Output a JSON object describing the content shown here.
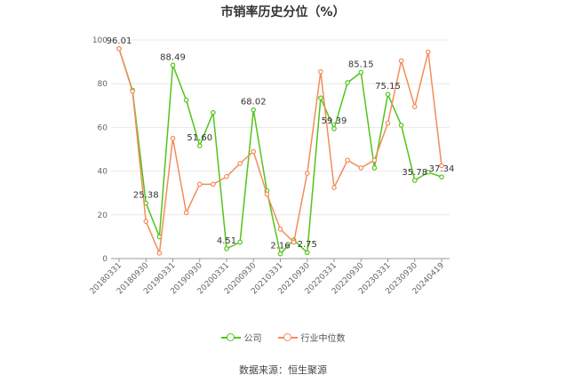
{
  "chart_data": {
    "type": "line",
    "title": "市销率历史分位（%）",
    "ylim": [
      0,
      100
    ],
    "yticks": [
      0,
      20,
      40,
      60,
      80,
      100
    ],
    "xtick_labels": [
      "20180331",
      "20180930",
      "20190331",
      "20190930",
      "20200331",
      "20200930",
      "20210331",
      "20210930",
      "20220331",
      "20220930",
      "20230331",
      "20230930",
      "20240419"
    ],
    "grid": true,
    "legend_position": "bottom",
    "series": [
      {
        "name": "公司",
        "color": "#52c41a",
        "values": [
          96.01,
          77.0,
          25.38,
          10.0,
          88.49,
          72.5,
          51.6,
          66.8,
          4.51,
          7.5,
          68.02,
          31.0,
          2.16,
          8.5,
          2.75,
          73.5,
          59.39,
          80.5,
          85.15,
          41.5,
          75.15,
          61.0,
          35.78,
          39.5,
          37.34
        ],
        "labels": [
          "96.01",
          "",
          "25.38",
          "",
          "88.49",
          "",
          "51.60",
          "",
          "4.51",
          "",
          "68.02",
          "",
          "2.16",
          "",
          "2.75",
          "",
          "59.39",
          "",
          "85.15",
          "",
          "75.15",
          "",
          "35.78",
          "",
          "37.34"
        ]
      },
      {
        "name": "行业中位数",
        "color": "#f28c5a",
        "values": [
          96.0,
          76.5,
          17.0,
          2.5,
          55.0,
          21.0,
          34.0,
          34.0,
          37.5,
          43.5,
          49.0,
          29.5,
          13.5,
          7.5,
          39.0,
          85.5,
          32.5,
          45.0,
          41.5,
          45.0,
          62.0,
          90.5,
          69.5,
          94.5,
          42.5
        ]
      }
    ]
  },
  "source": "数据来源：恒生聚源"
}
